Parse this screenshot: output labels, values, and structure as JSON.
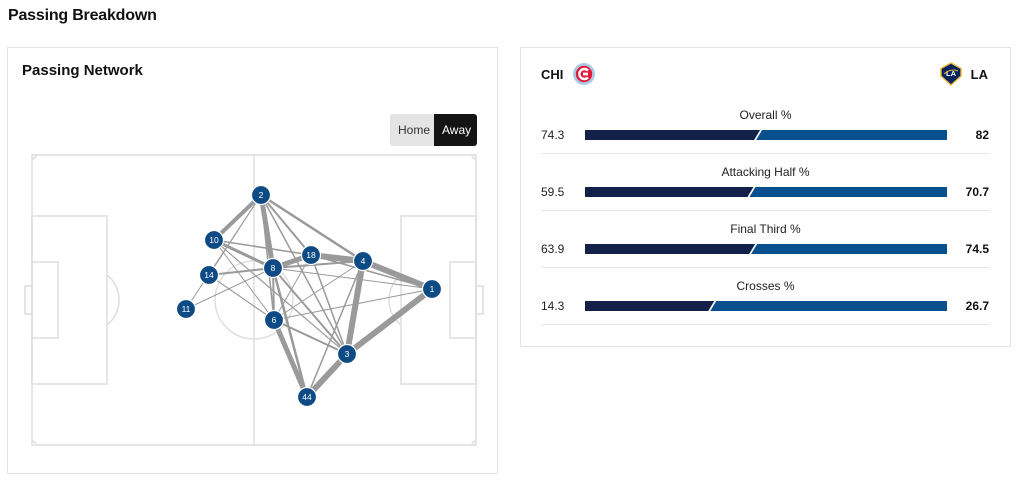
{
  "page": {
    "title": "Passing Breakdown"
  },
  "network": {
    "title": "Passing Network",
    "toggle": {
      "home_label": "Home",
      "away_label": "Away",
      "selected": "Away"
    },
    "node_color": "#0e4a84",
    "players": [
      {
        "number": "2"
      },
      {
        "number": "10"
      },
      {
        "number": "14"
      },
      {
        "number": "11"
      },
      {
        "number": "8"
      },
      {
        "number": "18"
      },
      {
        "number": "4"
      },
      {
        "number": "1"
      },
      {
        "number": "6"
      },
      {
        "number": "3"
      },
      {
        "number": "44"
      }
    ]
  },
  "comparison": {
    "home_team": {
      "abbr": "CHI",
      "logo": "chicago-fire-logo",
      "color": "#13214a"
    },
    "away_team": {
      "abbr": "LA",
      "logo": "la-galaxy-logo",
      "color": "#0a4f8e"
    },
    "stats": [
      {
        "label": "Overall %",
        "home": "74.3",
        "away": "82",
        "home_value": 74.3,
        "away_value": 82
      },
      {
        "label": "Attacking Half %",
        "home": "59.5",
        "away": "70.7",
        "home_value": 59.5,
        "away_value": 70.7
      },
      {
        "label": "Final Third %",
        "home": "63.9",
        "away": "74.5",
        "home_value": 63.9,
        "away_value": 74.5
      },
      {
        "label": "Crosses %",
        "home": "14.3",
        "away": "26.7",
        "home_value": 14.3,
        "away_value": 26.7
      }
    ]
  }
}
